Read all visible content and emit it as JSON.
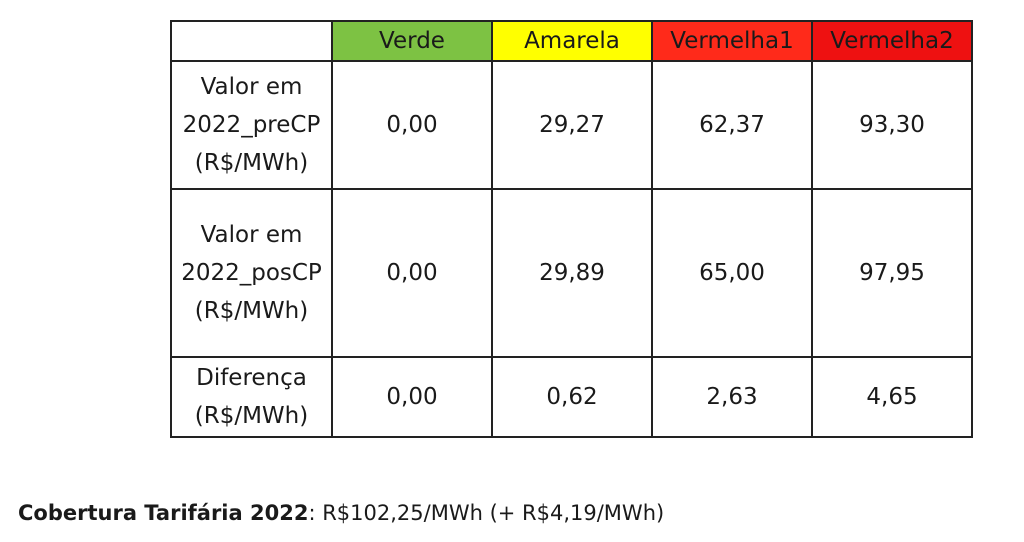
{
  "table": {
    "columns": [
      "Verde",
      "Amarela",
      "Vermelha1",
      "Vermelha2"
    ],
    "column_colors": [
      "#7dc243",
      "#ffff00",
      "#ff2a1a",
      "#ee1111"
    ],
    "rows": [
      {
        "label_lines": [
          "Valor em",
          "2022_preCP",
          "(R$/MWh)"
        ],
        "values": [
          "0,00",
          "29,27",
          "62,37",
          "93,30"
        ]
      },
      {
        "label_lines": [
          "Valor em",
          "2022_posCP",
          "(R$/MWh)"
        ],
        "values": [
          "0,00",
          "29,89",
          "65,00",
          "97,95"
        ]
      },
      {
        "label_lines": [
          "Diferença",
          "(R$/MWh)"
        ],
        "values": [
          "0,00",
          "0,62",
          "2,63",
          "4,65"
        ]
      }
    ]
  },
  "footer": {
    "label": "Cobertura Tarifária 2022",
    "text": ": R$102,25/MWh (+ R$4,19/MWh)"
  }
}
